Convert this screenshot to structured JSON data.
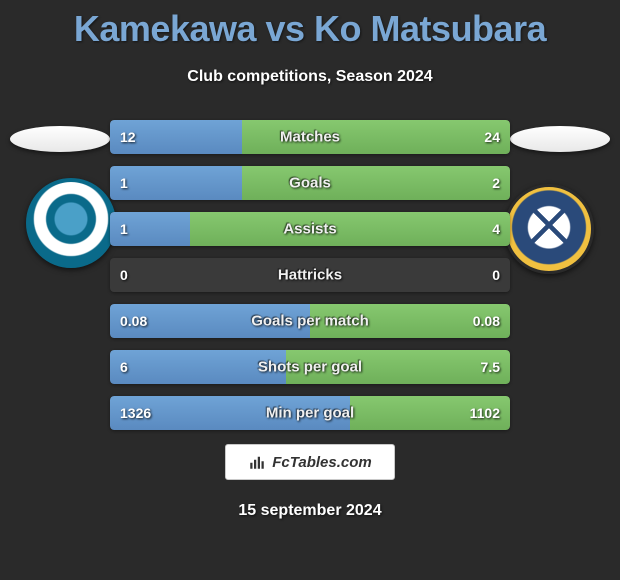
{
  "title": "Kamekawa vs Ko Matsubara",
  "subtitle": "Club competitions, Season 2024",
  "brand": "FcTables.com",
  "date": "15 september 2024",
  "left_color": "#6fa3d6",
  "right_color": "#86c86f",
  "background_color": "#2a2a2a",
  "bar_bg_color": "#3a3a3a",
  "rows": [
    {
      "label": "Matches",
      "left": "12",
      "right": "24",
      "left_pct": 33,
      "right_pct": 67
    },
    {
      "label": "Goals",
      "left": "1",
      "right": "2",
      "left_pct": 33,
      "right_pct": 67
    },
    {
      "label": "Assists",
      "left": "1",
      "right": "4",
      "left_pct": 20,
      "right_pct": 80
    },
    {
      "label": "Hattricks",
      "left": "0",
      "right": "0",
      "left_pct": 0,
      "right_pct": 0
    },
    {
      "label": "Goals per match",
      "left": "0.08",
      "right": "0.08",
      "left_pct": 50,
      "right_pct": 50
    },
    {
      "label": "Shots per goal",
      "left": "6",
      "right": "7.5",
      "left_pct": 44,
      "right_pct": 56
    },
    {
      "label": "Min per goal",
      "left": "1326",
      "right": "1102",
      "left_pct": 60,
      "right_pct": 40
    }
  ]
}
